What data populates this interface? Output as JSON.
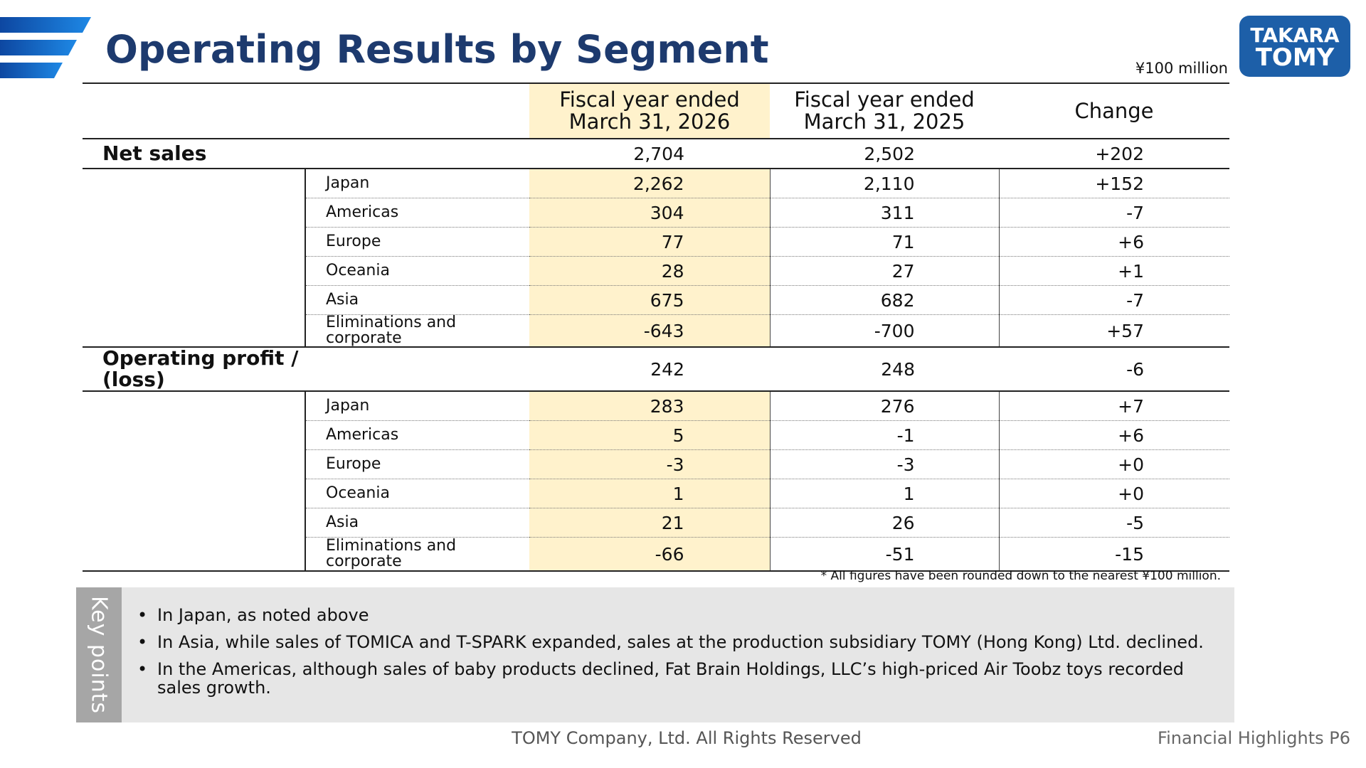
{
  "title": "Operating Results by Segment",
  "logo": {
    "line1": "TAKARA",
    "line2": "TOMY",
    "color": "#1d5fa8"
  },
  "unit_note": "¥100 million",
  "table": {
    "headers": [
      "Fiscal year ended\nMarch 31, 2026",
      "Fiscal year ended\nMarch 31, 2025",
      "Change"
    ],
    "net_sales": {
      "label": "Net sales",
      "values": [
        "2,704",
        "2,502",
        "+202"
      ],
      "rows": [
        {
          "label": "Japan",
          "values": [
            "2,262",
            "2,110",
            "+152"
          ]
        },
        {
          "label": "Americas",
          "values": [
            "304",
            "311",
            "-7"
          ]
        },
        {
          "label": "Europe",
          "values": [
            "77",
            "71",
            "+6"
          ]
        },
        {
          "label": "Oceania",
          "values": [
            "28",
            "27",
            "+1"
          ]
        },
        {
          "label": "Asia",
          "values": [
            "675",
            "682",
            "-7"
          ]
        },
        {
          "label": "Eliminations and\ncorporate",
          "values": [
            "-643",
            "-700",
            "+57"
          ]
        }
      ]
    },
    "operating_profit": {
      "label": "Operating profit /\n(loss)",
      "values": [
        "242",
        "248",
        "-6"
      ],
      "rows": [
        {
          "label": "Japan",
          "values": [
            "283",
            "276",
            "+7"
          ]
        },
        {
          "label": "Americas",
          "values": [
            "5",
            "-1",
            "+6"
          ]
        },
        {
          "label": "Europe",
          "values": [
            "-3",
            "-3",
            "+0"
          ]
        },
        {
          "label": "Oceania",
          "values": [
            "1",
            "1",
            "+0"
          ]
        },
        {
          "label": "Asia",
          "values": [
            "21",
            "26",
            "-5"
          ]
        },
        {
          "label": "Eliminations and\ncorporate",
          "values": [
            "-66",
            "-51",
            "-15"
          ]
        }
      ]
    }
  },
  "footnote": "* All figures have been rounded down to the nearest ¥100 million.",
  "key_points": {
    "label": "Key points",
    "items": [
      "In Japan, as noted above",
      "In Asia, while sales of TOMICA and T-SPARK expanded, sales at the production subsidiary TOMY (Hong Kong) Ltd. declined.",
      "In the Americas, although sales of baby products declined, Fat Brain Holdings, LLC’s high-priced Air Toobz toys recorded sales growth."
    ]
  },
  "footer": {
    "copyright": "TOMY Company, Ltd. All Rights Reserved",
    "page_ref": "Financial Highlights P6"
  },
  "colors": {
    "title": "#1d3a6e",
    "highlight": "#fff2cc",
    "stripe": "#1565c0",
    "keypoints_bg": "#e6e6e6",
    "keypoints_tab": "#a6a6a6"
  }
}
